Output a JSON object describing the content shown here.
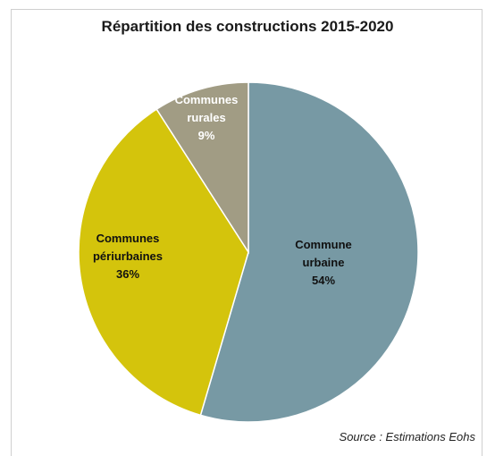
{
  "chart_data": {
    "type": "pie",
    "title": "Répartition des constructions 2015-2020",
    "slices": [
      {
        "label_lines": [
          "Commune",
          "urbaine"
        ],
        "value_label": "54%",
        "value": 54,
        "color": "#7799a4",
        "text_color": "#111111"
      },
      {
        "label_lines": [
          "Communes",
          "périurbaines"
        ],
        "value_label": "36%",
        "value": 36,
        "color": "#d4c40c",
        "text_color": "#111111"
      },
      {
        "label_lines": [
          "Communes",
          "rurales"
        ],
        "value_label": "9%",
        "value": 9,
        "color": "#a19c84",
        "text_color": "#ffffff"
      }
    ],
    "legend": "none",
    "source": "Source : Estimations Eohs"
  }
}
